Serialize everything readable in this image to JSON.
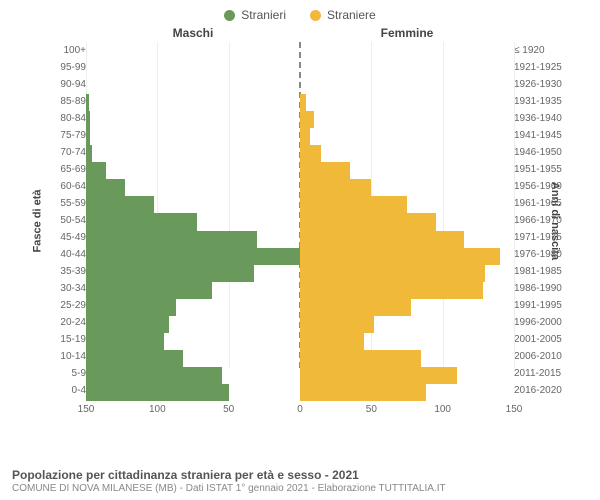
{
  "legend": {
    "male": {
      "label": "Stranieri",
      "color": "#6a9a5b"
    },
    "female": {
      "label": "Straniere",
      "color": "#f0b93a"
    }
  },
  "titles": {
    "male_side": "Maschi",
    "female_side": "Femmine",
    "left_axis": "Fasce di età",
    "right_axis": "Anni di nascita",
    "footer_main": "Popolazione per cittadinanza straniera per età e sesso - 2021",
    "footer_sub": "COMUNE DI NOVA MILANESE (MB) - Dati ISTAT 1° gennaio 2021 - Elaborazione TUTTITALIA.IT"
  },
  "colors": {
    "male": "#6a9a5b",
    "female": "#f0b93a",
    "grid": "#eeeeee",
    "centerline": "#888888",
    "text": "#666666",
    "background": "#ffffff"
  },
  "chart": {
    "type": "population-pyramid",
    "xmax": 150,
    "xticks_left": [
      150,
      100,
      50,
      0
    ],
    "xticks_right": [
      0,
      50,
      100,
      150
    ],
    "font_size_labels": 10,
    "font_size_axis_title": 11,
    "rows": [
      {
        "age": "100+",
        "birth": "≤ 1920",
        "m": 0,
        "f": 0
      },
      {
        "age": "95-99",
        "birth": "1921-1925",
        "m": 0,
        "f": 0
      },
      {
        "age": "90-94",
        "birth": "1926-1930",
        "m": 0,
        "f": 0
      },
      {
        "age": "85-89",
        "birth": "1931-1935",
        "m": 2,
        "f": 4
      },
      {
        "age": "80-84",
        "birth": "1936-1940",
        "m": 3,
        "f": 10
      },
      {
        "age": "75-79",
        "birth": "1941-1945",
        "m": 3,
        "f": 7
      },
      {
        "age": "70-74",
        "birth": "1946-1950",
        "m": 4,
        "f": 15
      },
      {
        "age": "65-69",
        "birth": "1951-1955",
        "m": 14,
        "f": 35
      },
      {
        "age": "60-64",
        "birth": "1956-1960",
        "m": 27,
        "f": 50
      },
      {
        "age": "55-59",
        "birth": "1961-1965",
        "m": 48,
        "f": 75
      },
      {
        "age": "50-54",
        "birth": "1966-1970",
        "m": 78,
        "f": 95
      },
      {
        "age": "45-49",
        "birth": "1971-1975",
        "m": 120,
        "f": 115
      },
      {
        "age": "40-44",
        "birth": "1976-1980",
        "m": 150,
        "f": 140
      },
      {
        "age": "35-39",
        "birth": "1981-1985",
        "m": 118,
        "f": 130
      },
      {
        "age": "30-34",
        "birth": "1986-1990",
        "m": 88,
        "f": 128
      },
      {
        "age": "25-29",
        "birth": "1991-1995",
        "m": 63,
        "f": 78
      },
      {
        "age": "20-24",
        "birth": "1996-2000",
        "m": 58,
        "f": 52
      },
      {
        "age": "15-19",
        "birth": "2001-2005",
        "m": 55,
        "f": 45
      },
      {
        "age": "10-14",
        "birth": "2006-2010",
        "m": 68,
        "f": 85
      },
      {
        "age": "5-9",
        "birth": "2011-2015",
        "m": 95,
        "f": 110
      },
      {
        "age": "0-4",
        "birth": "2016-2020",
        "m": 100,
        "f": 88
      }
    ]
  }
}
